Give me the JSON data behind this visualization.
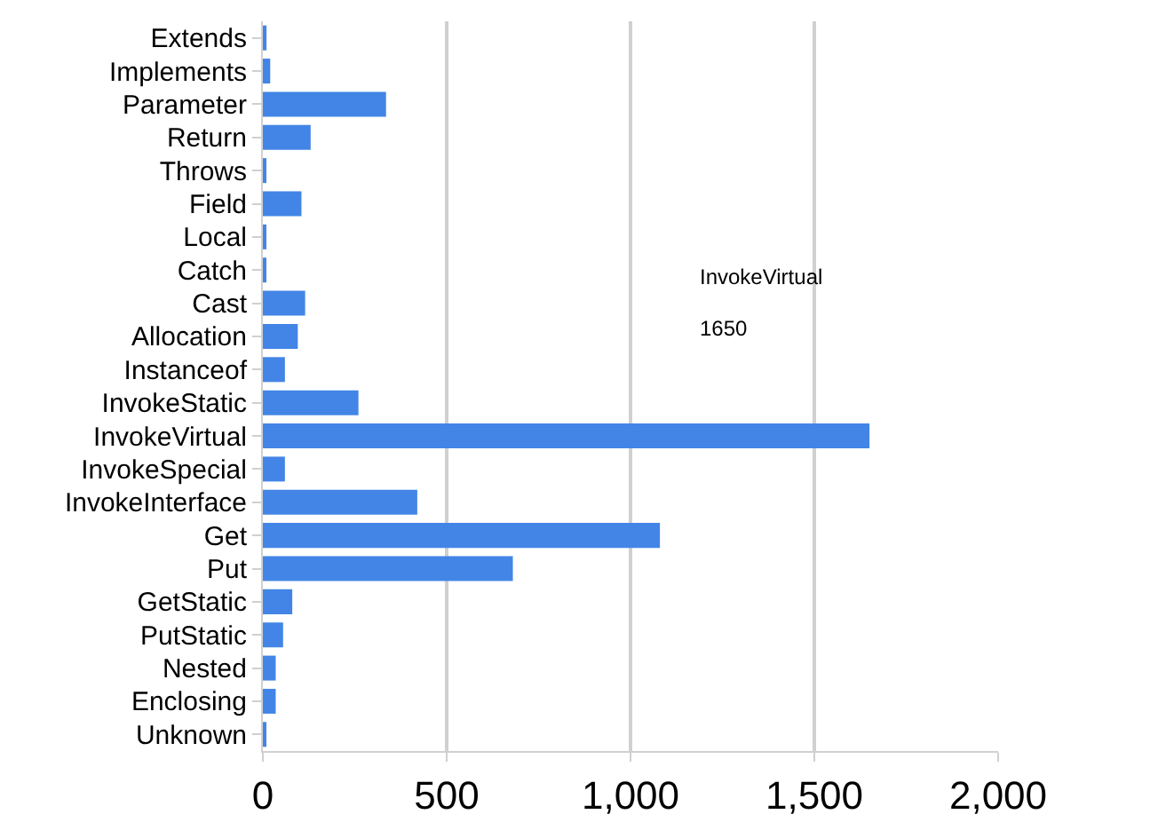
{
  "chart_data": {
    "type": "bar",
    "orientation": "horizontal",
    "categories": [
      "Extends",
      "Implements",
      "Parameter",
      "Return",
      "Throws",
      "Field",
      "Local",
      "Catch",
      "Cast",
      "Allocation",
      "Instanceof",
      "InvokeStatic",
      "InvokeVirtual",
      "InvokeSpecial",
      "InvokeInterface",
      "Get",
      "Put",
      "GetStatic",
      "PutStatic",
      "Nested",
      "Enclosing",
      "Unknown"
    ],
    "values": [
      10,
      20,
      335,
      130,
      5,
      105,
      5,
      5,
      115,
      95,
      60,
      260,
      1650,
      60,
      420,
      1080,
      680,
      80,
      55,
      35,
      35,
      5
    ],
    "color": "#4285e6",
    "xlim": [
      0,
      2000
    ],
    "xticks": [
      {
        "value": 0,
        "label": "0"
      },
      {
        "value": 500,
        "label": "500"
      },
      {
        "value": 1000,
        "label": "1,000"
      },
      {
        "value": 1500,
        "label": "1,500"
      },
      {
        "value": 2000,
        "label": "2,000"
      }
    ],
    "grid": "x",
    "annotations": [
      "InvokeVirtual",
      "1650"
    ]
  }
}
